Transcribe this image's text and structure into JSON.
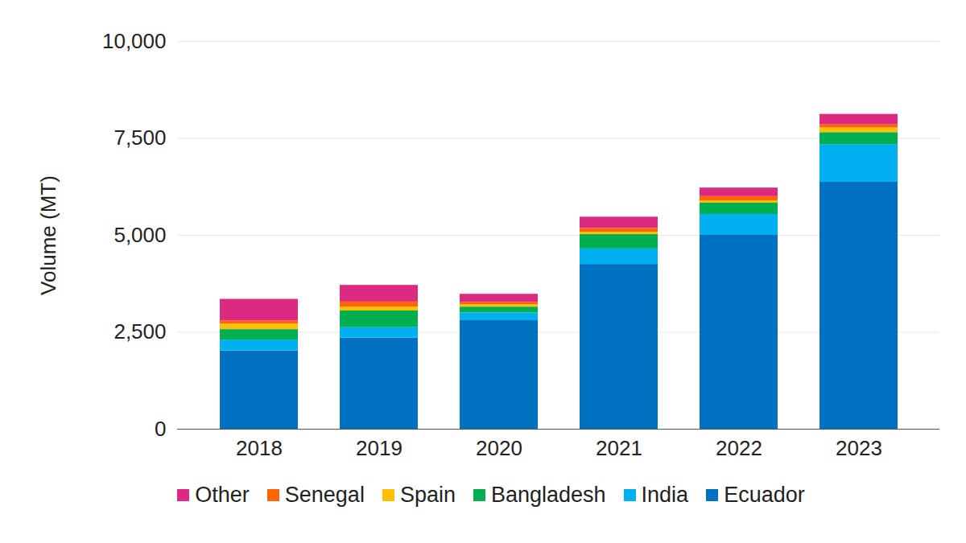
{
  "chart_data": {
    "type": "bar",
    "stacked": true,
    "grid": true,
    "legend": "bottom",
    "y_label": "Volume (MT)",
    "categories": [
      "2018",
      "2019",
      "2020",
      "2021",
      "2022",
      "2023"
    ],
    "ylim": [
      0,
      10000
    ],
    "yticks": [
      0,
      {
        "value": 2500,
        "label": "2,500"
      },
      {
        "value": 5000,
        "label": "5,000"
      },
      {
        "value": 7500,
        "label": "7,500"
      },
      {
        "value": 10000,
        "label": "10,000"
      }
    ],
    "series": [
      {
        "name": "Ecuador",
        "color": "#0070c0",
        "values": [
          2020,
          2350,
          2800,
          4250,
          5000,
          6370
        ]
      },
      {
        "name": "India",
        "color": "#00b0f0",
        "values": [
          280,
          270,
          200,
          400,
          540,
          970
        ]
      },
      {
        "name": "Bangladesh",
        "color": "#00b050",
        "values": [
          270,
          430,
          150,
          370,
          290,
          310
        ]
      },
      {
        "name": "Spain",
        "color": "#ffc000",
        "values": [
          140,
          100,
          60,
          60,
          60,
          120
        ]
      },
      {
        "name": "Senegal",
        "color": "#ff6600",
        "values": [
          80,
          130,
          60,
          100,
          110,
          80
        ]
      },
      {
        "name": "Other",
        "color": "#db2a7f",
        "values": [
          560,
          430,
          210,
          290,
          220,
          270
        ]
      }
    ]
  }
}
